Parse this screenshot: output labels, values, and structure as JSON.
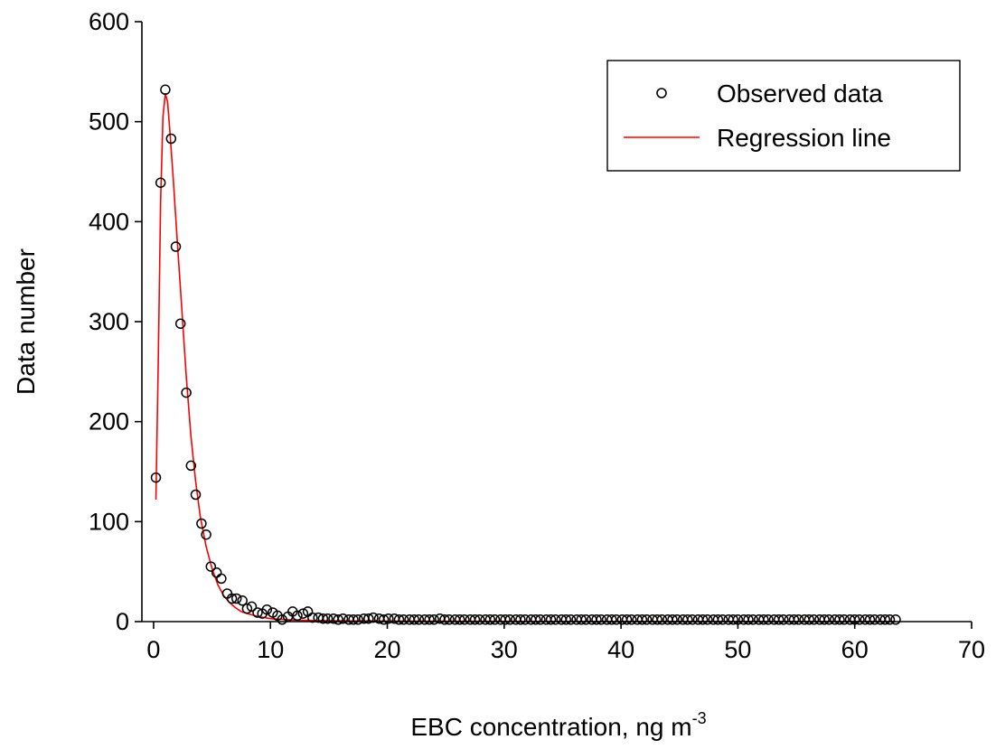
{
  "chart_data": {
    "type": "scatter",
    "xlabel_main": "EBC concentration, ng m",
    "xlabel_sup": "-3",
    "ylabel": "Data number",
    "xlim": [
      -1,
      70
    ],
    "ylim": [
      0,
      600
    ],
    "x_ticks": [
      0,
      10,
      20,
      30,
      40,
      50,
      60,
      70
    ],
    "y_ticks": [
      0,
      100,
      200,
      300,
      400,
      500,
      600
    ],
    "grid": false,
    "legend_position": "top-right",
    "series": [
      {
        "name": "Observed data",
        "style": "open-circle",
        "color": "#000000",
        "points": [
          [
            0.2,
            144
          ],
          [
            0.6,
            439
          ],
          [
            1.0,
            532
          ],
          [
            1.5,
            483
          ],
          [
            1.9,
            375
          ],
          [
            2.3,
            298
          ],
          [
            2.8,
            229
          ],
          [
            3.2,
            156
          ],
          [
            3.6,
            127
          ],
          [
            4.1,
            98
          ],
          [
            4.5,
            87
          ],
          [
            4.9,
            55
          ],
          [
            5.4,
            49
          ],
          [
            5.8,
            43
          ],
          [
            6.3,
            28
          ],
          [
            6.7,
            23
          ],
          [
            7.1,
            23
          ],
          [
            7.6,
            21
          ],
          [
            8.0,
            13
          ],
          [
            8.4,
            15
          ],
          [
            8.9,
            9
          ],
          [
            9.3,
            8
          ],
          [
            9.7,
            12
          ],
          [
            10.2,
            9
          ],
          [
            10.6,
            6
          ],
          [
            11.0,
            2
          ],
          [
            11.5,
            5
          ],
          [
            11.9,
            10
          ],
          [
            12.3,
            6
          ],
          [
            12.8,
            8
          ],
          [
            13.2,
            10
          ],
          [
            13.6,
            4
          ],
          [
            14.1,
            4
          ],
          [
            14.5,
            3
          ],
          [
            14.9,
            3
          ],
          [
            15.4,
            3
          ],
          [
            15.8,
            2
          ],
          [
            16.2,
            3
          ],
          [
            16.7,
            2
          ],
          [
            17.1,
            2
          ],
          [
            17.5,
            2
          ],
          [
            18.0,
            3
          ],
          [
            18.4,
            3
          ],
          [
            18.8,
            4
          ],
          [
            19.3,
            3
          ],
          [
            19.7,
            2
          ],
          [
            20.1,
            3
          ],
          [
            20.6,
            3
          ],
          [
            21.0,
            2
          ],
          [
            21.4,
            2
          ],
          [
            21.9,
            2
          ],
          [
            22.3,
            2
          ],
          [
            22.7,
            2
          ],
          [
            23.2,
            2
          ],
          [
            23.6,
            2
          ],
          [
            24.0,
            2
          ],
          [
            24.5,
            3
          ],
          [
            24.9,
            2
          ],
          [
            25.3,
            2
          ],
          [
            25.8,
            2
          ],
          [
            26.2,
            2
          ],
          [
            26.6,
            2
          ],
          [
            27.1,
            2
          ],
          [
            27.5,
            2
          ],
          [
            27.9,
            2
          ],
          [
            28.4,
            2
          ],
          [
            28.8,
            2
          ],
          [
            29.2,
            2
          ],
          [
            29.7,
            2
          ],
          [
            30.1,
            2
          ],
          [
            30.5,
            2
          ],
          [
            31.0,
            2
          ],
          [
            31.4,
            2
          ],
          [
            31.8,
            2
          ],
          [
            32.3,
            2
          ],
          [
            32.7,
            2
          ],
          [
            33.1,
            2
          ],
          [
            33.6,
            2
          ],
          [
            34.0,
            2
          ],
          [
            34.4,
            2
          ],
          [
            34.9,
            2
          ],
          [
            35.3,
            2
          ],
          [
            35.7,
            2
          ],
          [
            36.2,
            2
          ],
          [
            36.6,
            2
          ],
          [
            37.0,
            2
          ],
          [
            37.5,
            2
          ],
          [
            37.9,
            2
          ],
          [
            38.3,
            2
          ],
          [
            38.8,
            2
          ],
          [
            39.2,
            2
          ],
          [
            39.6,
            2
          ],
          [
            40.1,
            2
          ],
          [
            40.5,
            2
          ],
          [
            40.9,
            2
          ],
          [
            41.4,
            2
          ],
          [
            41.8,
            2
          ],
          [
            42.2,
            2
          ],
          [
            42.7,
            2
          ],
          [
            43.1,
            2
          ],
          [
            43.5,
            2
          ],
          [
            44.0,
            2
          ],
          [
            44.4,
            2
          ],
          [
            44.8,
            2
          ],
          [
            45.3,
            2
          ],
          [
            45.7,
            2
          ],
          [
            46.1,
            2
          ],
          [
            46.6,
            2
          ],
          [
            47.0,
            2
          ],
          [
            47.4,
            2
          ],
          [
            47.9,
            2
          ],
          [
            48.3,
            2
          ],
          [
            48.7,
            2
          ],
          [
            49.2,
            2
          ],
          [
            49.6,
            2
          ],
          [
            50.0,
            2
          ],
          [
            50.5,
            2
          ],
          [
            50.9,
            2
          ],
          [
            51.3,
            2
          ],
          [
            51.8,
            2
          ],
          [
            52.2,
            2
          ],
          [
            52.6,
            2
          ],
          [
            53.1,
            2
          ],
          [
            53.5,
            2
          ],
          [
            53.9,
            2
          ],
          [
            54.4,
            2
          ],
          [
            54.8,
            2
          ],
          [
            55.2,
            2
          ],
          [
            55.7,
            2
          ],
          [
            56.1,
            2
          ],
          [
            56.5,
            2
          ],
          [
            57.0,
            2
          ],
          [
            57.4,
            2
          ],
          [
            57.8,
            2
          ],
          [
            58.3,
            2
          ],
          [
            58.7,
            2
          ],
          [
            59.1,
            2
          ],
          [
            59.6,
            2
          ],
          [
            60.0,
            2
          ],
          [
            60.4,
            2
          ],
          [
            60.9,
            2
          ],
          [
            61.3,
            2
          ],
          [
            61.7,
            2
          ],
          [
            62.2,
            2
          ],
          [
            62.6,
            2
          ],
          [
            63.0,
            2
          ],
          [
            63.5,
            2
          ]
        ]
      },
      {
        "name": "Regression line",
        "style": "line",
        "color": "#ff0000",
        "points": [
          [
            0.2,
            122
          ],
          [
            0.4,
            260
          ],
          [
            0.6,
            420
          ],
          [
            0.8,
            505
          ],
          [
            1.0,
            528
          ],
          [
            1.2,
            520
          ],
          [
            1.4,
            490
          ],
          [
            1.7,
            440
          ],
          [
            2.0,
            385
          ],
          [
            2.4,
            315
          ],
          [
            2.8,
            245
          ],
          [
            3.2,
            185
          ],
          [
            3.6,
            140
          ],
          [
            4.0,
            105
          ],
          [
            4.5,
            75
          ],
          [
            5.0,
            53
          ],
          [
            5.5,
            37
          ],
          [
            6.0,
            26
          ],
          [
            6.5,
            19
          ],
          [
            7.0,
            14
          ],
          [
            7.5,
            10
          ],
          [
            8.0,
            8
          ],
          [
            9.0,
            5
          ],
          [
            10.0,
            3
          ],
          [
            12.0,
            1.5
          ],
          [
            15.0,
            0.8
          ],
          [
            20.0,
            0.5
          ],
          [
            30.0,
            0.3
          ],
          [
            40.0,
            0.2
          ],
          [
            50.0,
            0.15
          ],
          [
            63.5,
            0.1
          ]
        ]
      }
    ]
  }
}
